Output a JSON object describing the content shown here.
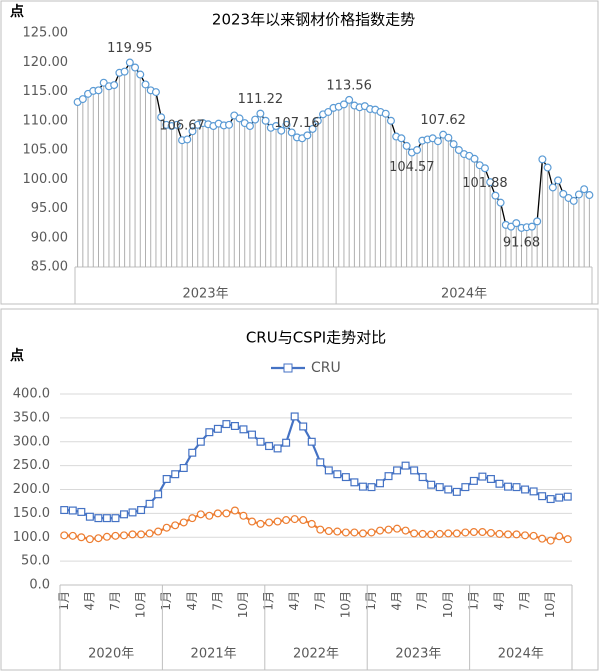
{
  "chart_data": [
    {
      "type": "line",
      "title": "2023年以来钢材价格指数走势",
      "y_label": "点",
      "groups": [
        {
          "label": "2023年",
          "categories": [
            null,
            null,
            null,
            null,
            null,
            null,
            null,
            null,
            null,
            null,
            null,
            null,
            null,
            null,
            null,
            null,
            null,
            null,
            null,
            null,
            null,
            null,
            null,
            null,
            null,
            null,
            null,
            null,
            null,
            null,
            null,
            null,
            null,
            null,
            null,
            null,
            null,
            null,
            null,
            null,
            null,
            null,
            null,
            null,
            null,
            null,
            null,
            null,
            null,
            null
          ]
        },
        {
          "label": "2024年",
          "categories": [
            null,
            null,
            null,
            null,
            null,
            null,
            null,
            null,
            null,
            null,
            null,
            null,
            null,
            null,
            null,
            null,
            null,
            null,
            null,
            null,
            null,
            null,
            null,
            null,
            null,
            null,
            null,
            null,
            null,
            null,
            null,
            null,
            null,
            null,
            null,
            null,
            null,
            null,
            null,
            null,
            null,
            null,
            null,
            null,
            null,
            null,
            null,
            null,
            null
          ]
        }
      ],
      "series": [
        {
          "color": "#000000",
          "marker_color": "#5b9bd5",
          "marker": "circle",
          "values": [
            113.2,
            113.7,
            114.6,
            115.1,
            115.2,
            116.5,
            115.9,
            116.1,
            118.2,
            118.4,
            119.95,
            119.1,
            117.9,
            116.2,
            115.2,
            114.9,
            110.6,
            109.3,
            109.1,
            109.3,
            106.67,
            106.8,
            108.2,
            109.3,
            109.6,
            109.4,
            109.1,
            109.5,
            109.2,
            109.3,
            110.9,
            110.4,
            109.6,
            109.1,
            110.2,
            111.22,
            110.0,
            108.8,
            109.1,
            108.3,
            109.3,
            108.0,
            107.16,
            107.0,
            107.5,
            108.6,
            110.0,
            111.1,
            111.5,
            112.2,
            112.4,
            112.8,
            113.56,
            112.6,
            112.3,
            112.5,
            112.0,
            111.9,
            111.5,
            111.2,
            110.0,
            107.3,
            107.0,
            105.7,
            104.57,
            105.0,
            106.6,
            106.8,
            107.0,
            106.5,
            107.62,
            107.1,
            106.0,
            105.0,
            104.3,
            104.0,
            103.5,
            102.4,
            101.88,
            99.5,
            97.2,
            96.0,
            92.2,
            91.9,
            92.5,
            91.68,
            91.8,
            91.9,
            92.8,
            103.4,
            102.0,
            98.6,
            99.8,
            97.5,
            96.8,
            96.3,
            97.4,
            98.3,
            97.3
          ],
          "value_labels": [
            null,
            null,
            null,
            null,
            null,
            null,
            null,
            null,
            null,
            null,
            "119.95",
            null,
            null,
            null,
            null,
            null,
            null,
            null,
            null,
            null,
            "106.67",
            null,
            null,
            null,
            null,
            null,
            null,
            null,
            null,
            null,
            null,
            null,
            null,
            null,
            null,
            "111.22",
            null,
            null,
            null,
            null,
            null,
            null,
            "107.16",
            null,
            null,
            null,
            null,
            null,
            null,
            null,
            null,
            null,
            "113.56",
            null,
            null,
            null,
            null,
            null,
            null,
            null,
            null,
            null,
            null,
            null,
            "104.57",
            null,
            null,
            null,
            null,
            null,
            "107.62",
            null,
            null,
            null,
            null,
            null,
            null,
            null,
            "101.88",
            null,
            null,
            null,
            null,
            null,
            null,
            "91.68",
            null,
            null,
            null,
            null,
            null,
            null,
            null,
            null,
            null,
            null,
            null,
            null,
            null
          ]
        }
      ],
      "ylim": [
        85,
        125
      ],
      "yticks": [
        {
          "value": 85,
          "label": "85.00"
        },
        {
          "value": 90,
          "label": "90.00"
        },
        {
          "value": 95,
          "label": "95.00"
        },
        {
          "value": 100,
          "label": "100.00"
        },
        {
          "value": 105,
          "label": "105.00"
        },
        {
          "value": 110,
          "label": "110.00"
        },
        {
          "value": 115,
          "label": "115.00"
        },
        {
          "value": 120,
          "label": "120.00"
        },
        {
          "value": 125,
          "label": "125.00"
        }
      ],
      "grid": false,
      "drop_lines": true
    },
    {
      "type": "line",
      "title": "CRU与CSPI走势对比",
      "y_label": "点",
      "groups": [
        {
          "label": "2020年",
          "categories": [
            "1月",
            null,
            null,
            "4月",
            null,
            null,
            "7月",
            null,
            null,
            "10月",
            null,
            null
          ]
        },
        {
          "label": "2021年",
          "categories": [
            "1月",
            null,
            null,
            "4月",
            null,
            null,
            "7月",
            null,
            null,
            "10月",
            null,
            null
          ]
        },
        {
          "label": "2022年",
          "categories": [
            "1月",
            null,
            null,
            "4月",
            null,
            null,
            "7月",
            null,
            null,
            "10月",
            null,
            null
          ]
        },
        {
          "label": "2023年",
          "categories": [
            "1月",
            null,
            null,
            "4月",
            null,
            null,
            "7月",
            null,
            null,
            "10月",
            null,
            null
          ]
        },
        {
          "label": "2024年",
          "categories": [
            "1月",
            null,
            null,
            "4月",
            null,
            null,
            "7月",
            null,
            null,
            "10月",
            null,
            null
          ]
        }
      ],
      "series": [
        {
          "name": "CRU",
          "color": "#4472c4",
          "marker": "square",
          "values": [
            157,
            156,
            153,
            143,
            140,
            140,
            140,
            148,
            152,
            157,
            170,
            190,
            222,
            232,
            245,
            277,
            300,
            320,
            327,
            337,
            333,
            326,
            315,
            300,
            291,
            286,
            298,
            353,
            332,
            300,
            257,
            240,
            232,
            226,
            215,
            206,
            205,
            213,
            228,
            240,
            250,
            240,
            226,
            210,
            205,
            200,
            195,
            205,
            218,
            227,
            222,
            212,
            206,
            205,
            200,
            196,
            186,
            180,
            183,
            185
          ]
        },
        {
          "color": "#ed7d31",
          "marker": "circle",
          "values": [
            104,
            103,
            100,
            96,
            98,
            101,
            103,
            104,
            106,
            106,
            108,
            112,
            120,
            125,
            131,
            140,
            148,
            145,
            150,
            150,
            156,
            145,
            133,
            128,
            131,
            133,
            136,
            138,
            136,
            128,
            116,
            113,
            112,
            110,
            110,
            108,
            110,
            114,
            116,
            118,
            114,
            108,
            107,
            106,
            107,
            108,
            108,
            110,
            111,
            111,
            109,
            107,
            106,
            106,
            104,
            103,
            97,
            93,
            102,
            96
          ]
        }
      ],
      "ylim": [
        0,
        400
      ],
      "yticks": [
        {
          "value": 0,
          "label": "0.0"
        },
        {
          "value": 50,
          "label": "50.0"
        },
        {
          "value": 100,
          "label": "100.0"
        },
        {
          "value": 150,
          "label": "150.0"
        },
        {
          "value": 200,
          "label": "200.0"
        },
        {
          "value": 250,
          "label": "250.0"
        },
        {
          "value": 300,
          "label": "300.0"
        },
        {
          "value": 350,
          "label": "350.0"
        },
        {
          "value": 400,
          "label": "400.0"
        }
      ],
      "grid": true,
      "legend": "top"
    }
  ]
}
